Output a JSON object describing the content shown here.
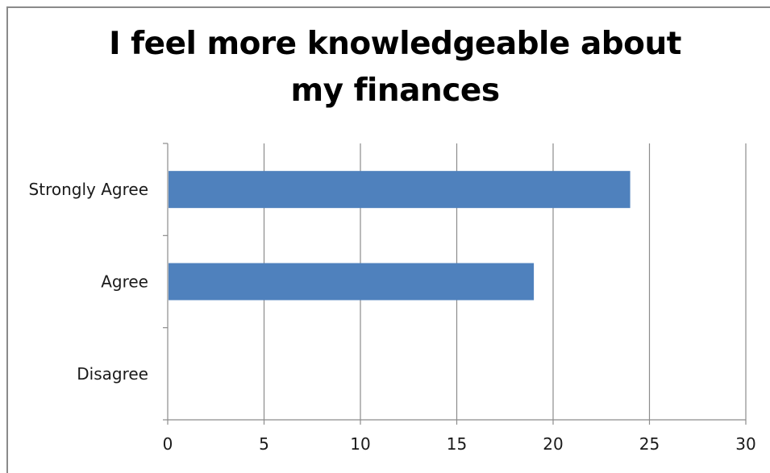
{
  "chart_data": {
    "type": "bar",
    "orientation": "horizontal",
    "title": "I feel more knowledgeable about my finances",
    "categories": [
      "Strongly Agree",
      "Agree",
      "Disagree"
    ],
    "values": [
      24,
      19,
      0
    ],
    "xlim": [
      0,
      30
    ],
    "xticks": [
      0,
      5,
      10,
      15,
      20,
      25,
      30
    ],
    "grid": "vertical",
    "legend": "none",
    "bar_color": "#4f81bd"
  }
}
